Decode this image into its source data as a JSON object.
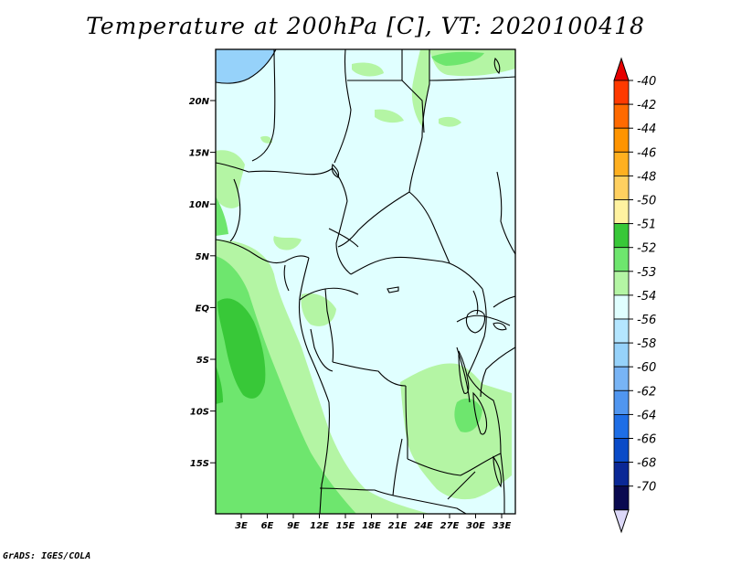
{
  "title": "Temperature at 200hPa [C], VT: 2020100418",
  "credit": "GrADS: IGES/COLA",
  "lat_labels": [
    "20N",
    "15N",
    "10N",
    "5N",
    "EQ",
    "5S",
    "10S",
    "15S"
  ],
  "lon_labels": [
    "3E",
    "6E",
    "9E",
    "12E",
    "15E",
    "18E",
    "21E",
    "24E",
    "27E",
    "30E",
    "33E"
  ],
  "colorbar": {
    "labels": [
      "-40",
      "-42",
      "-44",
      "-46",
      "-48",
      "-50",
      "-51",
      "-52",
      "-53",
      "-54",
      "-56",
      "-58",
      "-60",
      "-62",
      "-64",
      "-66",
      "-68",
      "-70"
    ],
    "colors": [
      "#ff3a00",
      "#ff6a00",
      "#ff9400",
      "#ffb020",
      "#ffd060",
      "#fff2a0",
      "#38c838",
      "#6ee66e",
      "#b4f5a4",
      "#e0ffff",
      "#b4e6ff",
      "#96d2fa",
      "#78b4f5",
      "#5096f0",
      "#1e6ee6",
      "#0a4bc8",
      "#0a2896",
      "#0a0a50"
    ],
    "top_arrow_color": "#e60000",
    "bottom_arrow_color": "#dcd8f8"
  },
  "palette": {
    "background_field": "#e0ffff",
    "light_green": "#b4f5a4",
    "mid_green": "#6ee66e",
    "dark_green": "#38c838",
    "water": "#96d2fa"
  }
}
